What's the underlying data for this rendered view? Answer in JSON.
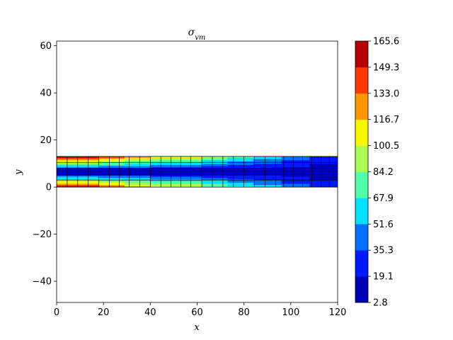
{
  "chart_data": {
    "type": "heatmap",
    "title_base": "σ",
    "title_sub": "vm",
    "xlabel": "x",
    "ylabel": "y",
    "xlim": [
      0,
      120
    ],
    "ylim": [
      -49,
      62
    ],
    "x_ticks": [
      0,
      20,
      40,
      60,
      80,
      100,
      120
    ],
    "y_ticks": [
      -40,
      -20,
      0,
      20,
      40,
      60
    ],
    "beam": {
      "x_range": [
        0,
        120
      ],
      "y_range": [
        0,
        13
      ],
      "element_columns": [
        0,
        4.5,
        9,
        13.5,
        18,
        22.5,
        26.8,
        31,
        35.5,
        40,
        44.5,
        48.8,
        53,
        57.3,
        62,
        66.5,
        71,
        75.5,
        80,
        84.5,
        89,
        93.5,
        97,
        101,
        105,
        109,
        113,
        116.5,
        120
      ],
      "element_rows": [
        0,
        3,
        5.5,
        8,
        10.5,
        13
      ]
    },
    "colorbar": {
      "ticks": [
        2.8,
        19.1,
        35.3,
        51.6,
        67.9,
        84.2,
        100.5,
        116.7,
        133.0,
        149.3,
        165.6
      ],
      "tick_labels": [
        "2.8",
        "19.1",
        "35.3",
        "51.6",
        "67.9",
        "84.2",
        "100.5",
        "116.7",
        "133.0",
        "149.3",
        "165.6"
      ],
      "colors": [
        "#0000b8",
        "#0018ff",
        "#0070ff",
        "#00e0ff",
        "#50ffa8",
        "#a8ff50",
        "#f8f800",
        "#ff9800",
        "#ff3800",
        "#b40000"
      ]
    },
    "stress_levels": {
      "outer_band_by_x": [
        {
          "x": [
            0,
            18
          ],
          "level": 9
        },
        {
          "x": [
            18,
            29
          ],
          "level": 8
        },
        {
          "x": [
            29,
            40
          ],
          "level": 7
        },
        {
          "x": [
            40,
            62
          ],
          "level": 6
        },
        {
          "x": [
            62,
            73
          ],
          "level": 5
        },
        {
          "x": [
            73,
            84
          ],
          "level": 4
        },
        {
          "x": [
            84,
            96
          ],
          "level": 3
        },
        {
          "x": [
            96,
            108
          ],
          "level": 2
        },
        {
          "x": [
            108,
            120
          ],
          "level": 1
        }
      ]
    }
  }
}
